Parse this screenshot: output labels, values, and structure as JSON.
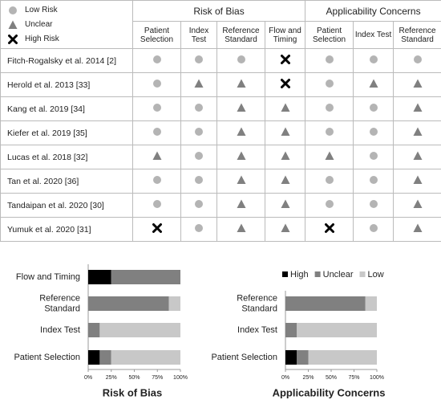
{
  "table": {
    "legend": [
      "Low Risk",
      "Unclear",
      "High Risk"
    ],
    "group_headers": [
      "Risk of Bias",
      "Applicability Concerns"
    ],
    "columns": [
      "Patient Selection",
      "Index Test",
      "Reference Standard",
      "Flow and Timing",
      "Patient Selection",
      "Index Test",
      "Reference Standard"
    ],
    "rows": [
      {
        "study": "Fitch-Rogalsky et al. 2014 [2]",
        "ratings": [
          "Low Risk",
          "Low Risk",
          "Low Risk",
          "High Risk",
          "Low Risk",
          "Low Risk",
          "Low Risk"
        ]
      },
      {
        "study": "Herold  et al.  2013 [33]",
        "ratings": [
          "Low Risk",
          "Unclear",
          "Unclear",
          "High Risk",
          "Low Risk",
          "Unclear",
          "Unclear"
        ]
      },
      {
        "study": "Kang et al. 2019 [34]",
        "ratings": [
          "Low Risk",
          "Low Risk",
          "Unclear",
          "Unclear",
          "Low Risk",
          "Low Risk",
          "Unclear"
        ]
      },
      {
        "study": "Kiefer et al. 2019 [35]",
        "ratings": [
          "Low Risk",
          "Low Risk",
          "Unclear",
          "Unclear",
          "Low Risk",
          "Low Risk",
          "Unclear"
        ]
      },
      {
        "study": "Lucas et al. 2018 [32]",
        "ratings": [
          "Unclear",
          "Low Risk",
          "Unclear",
          "Unclear",
          "Unclear",
          "Low Risk",
          "Unclear"
        ]
      },
      {
        "study": "Tan et al. 2020 [36]",
        "ratings": [
          "Low Risk",
          "Low Risk",
          "Unclear",
          "Unclear",
          "Low Risk",
          "Low Risk",
          "Unclear"
        ]
      },
      {
        "study": "Tandaipan  et al. 2020 [30]",
        "ratings": [
          "Low Risk",
          "Low Risk",
          "Unclear",
          "Unclear",
          "Low Risk",
          "Low Risk",
          "Unclear"
        ]
      },
      {
        "study": "Yumuk et al. 2020 [31]",
        "ratings": [
          "High Risk",
          "Low Risk",
          "Unclear",
          "Unclear",
          "High Risk",
          "Low Risk",
          "Unclear"
        ]
      }
    ]
  },
  "chart_data": [
    {
      "type": "stacked-barh",
      "title": "Risk of Bias",
      "categories": [
        "Flow and Timing",
        "Reference Standard",
        "Index Test",
        "Patient Selection"
      ],
      "series": [
        {
          "color": "#000000",
          "values": [
            25,
            0,
            0,
            12.5
          ]
        },
        {
          "color": "#808080",
          "values": [
            75,
            87.5,
            12.5,
            12.5
          ]
        },
        {
          "color": "#c8c8c8",
          "values": [
            0,
            12.5,
            87.5,
            75
          ]
        }
      ],
      "xlim": [
        0,
        100
      ],
      "xticks": [
        {
          "value": 0,
          "label": "0%"
        },
        {
          "value": 25,
          "label": "25%"
        },
        {
          "value": 50,
          "label": "50%"
        },
        {
          "value": 75,
          "label": "75%"
        },
        {
          "value": 100,
          "label": "100%"
        }
      ]
    },
    {
      "type": "stacked-barh",
      "title": "Applicability  Concerns",
      "categories": [
        "Reference Standard",
        "Index Test",
        "Patient Selection"
      ],
      "series": [
        {
          "name": "High",
          "color": "#000000",
          "values": [
            0,
            0,
            12.5
          ]
        },
        {
          "name": "Unclear",
          "color": "#808080",
          "values": [
            87.5,
            12.5,
            12.5
          ]
        },
        {
          "name": "Low",
          "color": "#c8c8c8",
          "values": [
            12.5,
            87.5,
            75
          ]
        }
      ],
      "xlim": [
        0,
        100
      ],
      "xticks": [
        {
          "value": 0,
          "label": "0%"
        },
        {
          "value": 25,
          "label": "25%"
        },
        {
          "value": 50,
          "label": "50%"
        },
        {
          "value": 75,
          "label": "75%"
        },
        {
          "value": 100,
          "label": "100%"
        }
      ],
      "legend": "top"
    }
  ]
}
